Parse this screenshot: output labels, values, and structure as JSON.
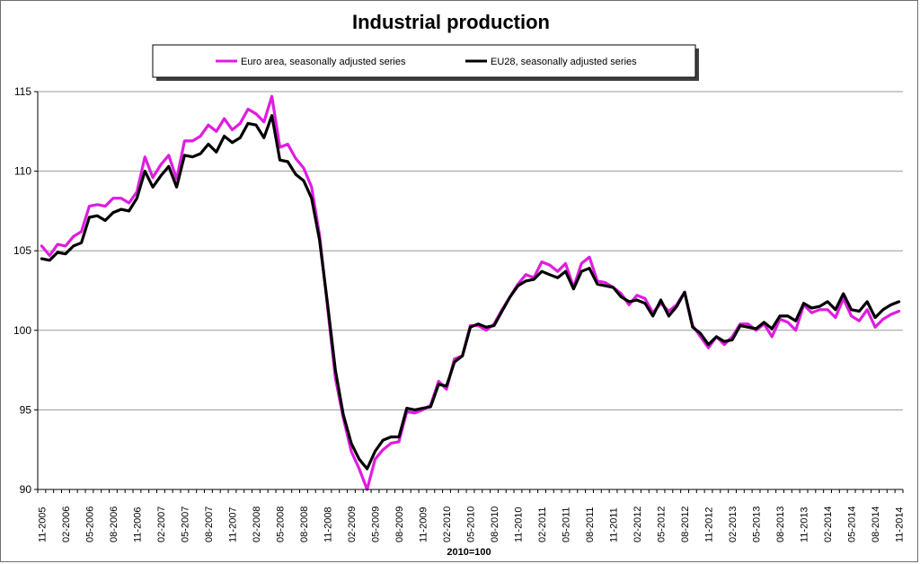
{
  "chart_data": {
    "type": "line",
    "title": "Industrial production",
    "xlabel": "2010=100",
    "ylabel": "",
    "ylim": [
      90,
      115
    ],
    "yticks": [
      90,
      95,
      100,
      105,
      110,
      115
    ],
    "grid": "horizontal",
    "legend_placement": "top",
    "x_tick_labels": [
      "11-2005",
      "02-2006",
      "05-2006",
      "08-2006",
      "11-2006",
      "02-2007",
      "05-2007",
      "08-2007",
      "11-2007",
      "02-2008",
      "05-2008",
      "08-2008",
      "11-2008",
      "02-2009",
      "05-2009",
      "08-2009",
      "11-2009",
      "02-2010",
      "05-2010",
      "08-2010",
      "11-2010",
      "02-2011",
      "05-2011",
      "08-2011",
      "11-2011",
      "02-2012",
      "05-2012",
      "08-2012",
      "11-2012",
      "02-2013",
      "05-2013",
      "08-2013",
      "11-2013",
      "02-2014",
      "05-2014",
      "08-2014",
      "11-2014"
    ],
    "x": [
      "11-2005",
      "12-2005",
      "01-2006",
      "02-2006",
      "03-2006",
      "04-2006",
      "05-2006",
      "06-2006",
      "07-2006",
      "08-2006",
      "09-2006",
      "10-2006",
      "11-2006",
      "12-2006",
      "01-2007",
      "02-2007",
      "03-2007",
      "04-2007",
      "05-2007",
      "06-2007",
      "07-2007",
      "08-2007",
      "09-2007",
      "10-2007",
      "11-2007",
      "12-2007",
      "01-2008",
      "02-2008",
      "03-2008",
      "04-2008",
      "05-2008",
      "06-2008",
      "07-2008",
      "08-2008",
      "09-2008",
      "10-2008",
      "11-2008",
      "12-2008",
      "01-2009",
      "02-2009",
      "03-2009",
      "04-2009",
      "05-2009",
      "06-2009",
      "07-2009",
      "08-2009",
      "09-2009",
      "10-2009",
      "11-2009",
      "12-2009",
      "01-2010",
      "02-2010",
      "03-2010",
      "04-2010",
      "05-2010",
      "06-2010",
      "07-2010",
      "08-2010",
      "09-2010",
      "10-2010",
      "11-2010",
      "12-2010",
      "01-2011",
      "02-2011",
      "03-2011",
      "04-2011",
      "05-2011",
      "06-2011",
      "07-2011",
      "08-2011",
      "09-2011",
      "10-2011",
      "11-2011",
      "12-2011",
      "01-2012",
      "02-2012",
      "03-2012",
      "04-2012",
      "05-2012",
      "06-2012",
      "07-2012",
      "08-2012",
      "09-2012",
      "10-2012",
      "11-2012",
      "12-2012",
      "01-2013",
      "02-2013",
      "03-2013",
      "04-2013",
      "05-2013",
      "06-2013",
      "07-2013",
      "08-2013",
      "09-2013",
      "10-2013",
      "11-2013",
      "12-2013",
      "01-2014",
      "02-2014",
      "03-2014",
      "04-2014",
      "05-2014",
      "06-2014",
      "07-2014",
      "08-2014",
      "09-2014",
      "10-2014",
      "11-2014"
    ],
    "series": [
      {
        "name": "Euro area, seasonally adjusted series",
        "color": "#e01ce0",
        "values": [
          105.3,
          104.7,
          105.4,
          105.3,
          105.9,
          106.2,
          107.8,
          107.9,
          107.8,
          108.3,
          108.3,
          108.0,
          108.7,
          110.9,
          109.6,
          110.4,
          111.0,
          109.5,
          111.9,
          111.9,
          112.2,
          112.9,
          112.5,
          113.3,
          112.6,
          113.0,
          113.9,
          113.6,
          113.1,
          114.7,
          111.5,
          111.7,
          110.8,
          110.2,
          109.0,
          106.0,
          101.5,
          97.0,
          94.5,
          92.4,
          91.3,
          90.0,
          91.9,
          92.5,
          92.9,
          93.0,
          94.9,
          94.8,
          95.0,
          95.3,
          96.8,
          96.3,
          98.2,
          98.4,
          100.3,
          100.3,
          100.0,
          100.4,
          101.3,
          102.1,
          102.9,
          103.5,
          103.3,
          104.3,
          104.1,
          103.7,
          104.2,
          102.7,
          104.2,
          104.6,
          103.1,
          103.0,
          102.7,
          102.3,
          101.6,
          102.2,
          102.0,
          101.1,
          101.7,
          101.2,
          101.6,
          102.4,
          100.3,
          99.6,
          98.9,
          99.6,
          99.1,
          99.6,
          100.4,
          100.4,
          100.0,
          100.4,
          99.6,
          100.7,
          100.5,
          100.0,
          101.6,
          101.1,
          101.3,
          101.3,
          100.8,
          102.0,
          100.9,
          100.6,
          101.3,
          100.2,
          100.7,
          101.0,
          101.2
        ]
      },
      {
        "name": "EU28, seasonally adjusted series",
        "color": "#000000",
        "values": [
          104.5,
          104.4,
          104.9,
          104.8,
          105.3,
          105.5,
          107.1,
          107.2,
          106.9,
          107.4,
          107.6,
          107.5,
          108.3,
          110.0,
          109.0,
          109.7,
          110.3,
          109.0,
          111.0,
          110.9,
          111.1,
          111.7,
          111.2,
          112.2,
          111.8,
          112.1,
          113.0,
          112.9,
          112.1,
          113.5,
          110.7,
          110.6,
          109.8,
          109.4,
          108.3,
          105.7,
          101.7,
          97.5,
          94.7,
          92.9,
          91.9,
          91.3,
          92.4,
          93.1,
          93.3,
          93.3,
          95.1,
          95.0,
          95.1,
          95.2,
          96.6,
          96.5,
          98.0,
          98.4,
          100.2,
          100.4,
          100.2,
          100.3,
          101.2,
          102.1,
          102.8,
          103.1,
          103.2,
          103.7,
          103.5,
          103.3,
          103.7,
          102.6,
          103.7,
          103.9,
          102.9,
          102.8,
          102.7,
          102.1,
          101.8,
          101.9,
          101.7,
          100.9,
          101.9,
          100.9,
          101.5,
          102.4,
          100.2,
          99.8,
          99.1,
          99.6,
          99.3,
          99.4,
          100.3,
          100.2,
          100.1,
          100.5,
          100.1,
          100.9,
          100.9,
          100.6,
          101.7,
          101.4,
          101.5,
          101.8,
          101.3,
          102.3,
          101.3,
          101.2,
          101.8,
          100.8,
          101.3,
          101.6,
          101.8
        ]
      }
    ]
  }
}
